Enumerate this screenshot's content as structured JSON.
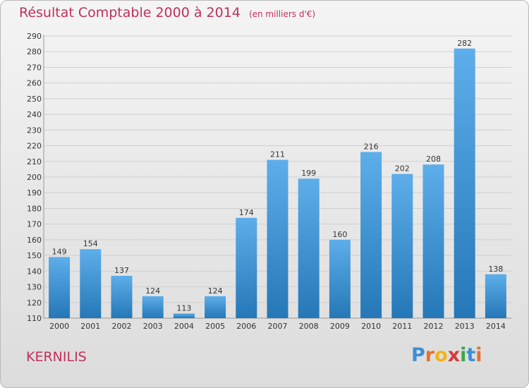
{
  "header": {
    "title": "Résultat Comptable 2000 à 2014",
    "subtitle": "(en milliers d'€)"
  },
  "footer": {
    "commune": "KERNILIS",
    "logo": "Proxiti"
  },
  "colors": {
    "title": "#c0305a",
    "bar_top": "#5daeea",
    "bar_bottom": "#2577b7",
    "grid": "#cfcfcf"
  },
  "chart_data": {
    "type": "bar",
    "title": "Résultat Comptable 2000 à 2014",
    "subtitle": "(en milliers d'€)",
    "xlabel": "",
    "ylabel": "",
    "categories": [
      "2000",
      "2001",
      "2002",
      "2003",
      "2004",
      "2005",
      "2006",
      "2007",
      "2008",
      "2009",
      "2010",
      "2011",
      "2012",
      "2013",
      "2014"
    ],
    "values": [
      149,
      154,
      137,
      124,
      113,
      124,
      174,
      211,
      199,
      160,
      216,
      202,
      208,
      282,
      138
    ],
    "ylim": [
      110,
      290
    ],
    "yticks": [
      110,
      120,
      130,
      140,
      150,
      160,
      170,
      180,
      190,
      200,
      210,
      220,
      230,
      240,
      250,
      260,
      270,
      280,
      290
    ],
    "grid": true,
    "data_labels": true,
    "legend": "none"
  }
}
